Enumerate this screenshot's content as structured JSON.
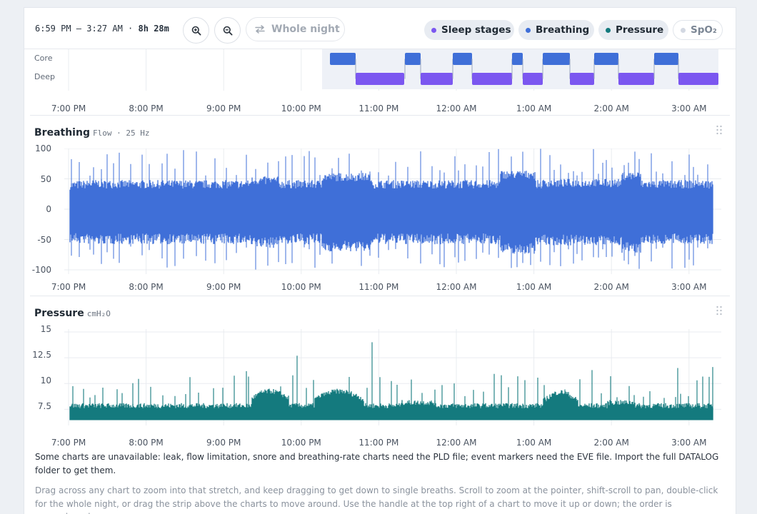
{
  "toolbar": {
    "range": "6:59 PM – 3:27 AM",
    "separator": " · ",
    "duration": "8h 28m",
    "zoom_in_icon": "zoom-in-icon",
    "zoom_out_icon": "zoom-out-icon",
    "whole_night_label": "Whole night",
    "whole_night_icon": "swap-arrows-icon",
    "toggles": [
      {
        "label": "Sleep stages",
        "color": "#7b57f0",
        "active": true
      },
      {
        "label": "Breathing",
        "color": "#3f6fd8",
        "active": true
      },
      {
        "label": "Pressure",
        "color": "#147a7e",
        "active": true
      },
      {
        "label": "SpO₂",
        "color": "#d3d8e2",
        "active": false
      }
    ]
  },
  "time_ticks": [
    "7:00 PM",
    "8:00 PM",
    "9:00 PM",
    "10:00 PM",
    "11:00 PM",
    "12:00 AM",
    "1:00 AM",
    "2:00 AM",
    "3:00 AM"
  ],
  "colors": {
    "core": "#3f6fd8",
    "deep": "#7b57f0",
    "breathing": "#3f6fd8",
    "pressure": "#147a7e",
    "grid": "#e9ecf0",
    "stage_bg": "#eef1f7"
  },
  "stages": {
    "labels": [
      "Core",
      "Deep"
    ]
  },
  "breathing": {
    "title": "Breathing",
    "subtitle": "Flow · 25 Hz",
    "y_ticks": [
      "100",
      "50",
      "0",
      "-50",
      "-100"
    ]
  },
  "pressure": {
    "title": "Pressure",
    "subtitle": "cmH₂O",
    "y_ticks": [
      "15",
      "12.5",
      "10",
      "7.5"
    ]
  },
  "notes": {
    "unavailable": "Some charts are unavailable: leak, flow limitation, snore and breathing-rate charts need the PLD file; event markers need the EVE file. Import the full DATALOG folder to get them.",
    "hint": "Drag across any chart to zoom into that stretch, and keep dragging to get down to single breaths. Scroll to zoom at the pointer, shift-scroll to pan, double-click for the whole night, or drag the strip above the charts to move around. Use the handle at the top right of a chart to move it up or down; the order is remembered."
  }
}
